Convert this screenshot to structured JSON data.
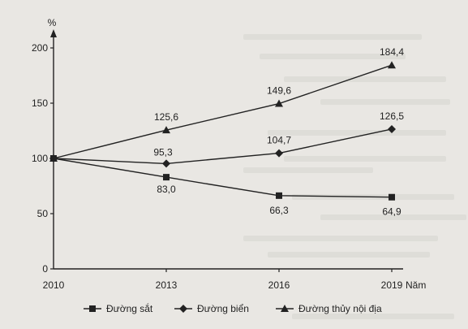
{
  "chart_data": {
    "type": "line",
    "categories": [
      "2010",
      "2013",
      "2016",
      "2019"
    ],
    "x": [
      2010,
      2013,
      2016,
      2019
    ],
    "xlabel": "Năm",
    "ylabel": "%",
    "ylim": [
      0,
      200
    ],
    "yticks": [
      0,
      50,
      100,
      150,
      200
    ],
    "grid": false,
    "legend_position": "bottom",
    "series": [
      {
        "name": "Đường sắt",
        "marker": "square",
        "values": [
          100,
          83.0,
          66.3,
          64.9
        ],
        "labels": [
          "",
          "83,0",
          "66,3",
          "64,9"
        ]
      },
      {
        "name": "Đường biển",
        "marker": "diamond",
        "values": [
          100,
          95.3,
          104.7,
          126.5
        ],
        "labels": [
          "",
          "95,3",
          "104,7",
          "126,5"
        ]
      },
      {
        "name": "Đường thủy nội địa",
        "marker": "triangle",
        "values": [
          100,
          125.6,
          149.6,
          184.4
        ],
        "labels": [
          "",
          "125,6",
          "149,6",
          "184,4"
        ]
      }
    ]
  }
}
